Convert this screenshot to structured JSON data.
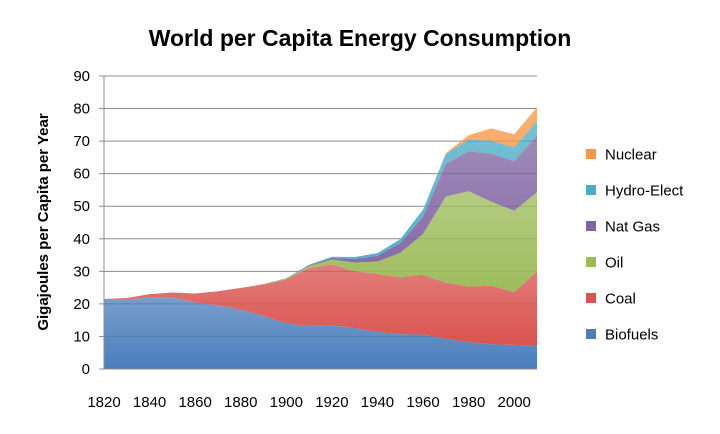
{
  "chart_data": {
    "type": "area",
    "stacked": true,
    "title": "World per Capita Energy Consumption",
    "xlabel": "",
    "ylabel": "Gigajoules per Capita per Year",
    "xlim": [
      1820,
      2010
    ],
    "ylim": [
      0,
      90
    ],
    "yticks": [
      0,
      10,
      20,
      30,
      40,
      50,
      60,
      70,
      80,
      90
    ],
    "xticks": [
      1820,
      1840,
      1860,
      1880,
      1900,
      1920,
      1940,
      1960,
      1980,
      2000
    ],
    "grid": "horizontal",
    "legend": "right",
    "x": [
      1820,
      1830,
      1840,
      1850,
      1860,
      1870,
      1880,
      1890,
      1900,
      1910,
      1920,
      1930,
      1940,
      1950,
      1960,
      1970,
      1980,
      1990,
      2000,
      2010
    ],
    "series": [
      {
        "name": "Biofuels",
        "color": "#4a7ebb",
        "values": [
          21.2,
          21.3,
          22.0,
          22.0,
          20.4,
          19.6,
          18.2,
          16.3,
          14.0,
          13.2,
          13.4,
          12.6,
          11.4,
          10.7,
          10.6,
          9.3,
          8.2,
          7.6,
          7.4,
          7.2
        ]
      },
      {
        "name": "Coal",
        "color": "#d9534f",
        "values": [
          0.3,
          0.5,
          1.0,
          1.5,
          2.8,
          4.3,
          6.7,
          9.7,
          13.5,
          17.8,
          18.8,
          17.4,
          17.8,
          17.5,
          18.4,
          17.2,
          17.1,
          18.0,
          16.2,
          22.8
        ]
      },
      {
        "name": "Oil",
        "color": "#9bbb59",
        "values": [
          0,
          0,
          0,
          0,
          0,
          0,
          0,
          0.1,
          0.2,
          0.6,
          1.4,
          2.7,
          3.8,
          7.5,
          12.5,
          26.5,
          29.3,
          25.8,
          25.0,
          24.3
        ]
      },
      {
        "name": "Nat Gas",
        "color": "#8064a2",
        "values": [
          0,
          0,
          0,
          0,
          0,
          0,
          0,
          0,
          0.1,
          0.2,
          0.5,
          1.1,
          1.8,
          3.0,
          5.3,
          10.0,
          12.3,
          14.7,
          15.3,
          17.4
        ]
      },
      {
        "name": "Hydro-Elect",
        "color": "#4bacc6",
        "values": [
          0,
          0,
          0,
          0,
          0,
          0,
          0,
          0,
          0.1,
          0.2,
          0.4,
          0.6,
          0.8,
          1.2,
          2.2,
          3.0,
          3.6,
          4.0,
          4.2,
          4.4
        ]
      },
      {
        "name": "Nuclear",
        "color": "#f79646",
        "values": [
          0,
          0,
          0,
          0,
          0,
          0,
          0,
          0,
          0,
          0,
          0,
          0,
          0,
          0,
          0,
          0.3,
          1.3,
          3.8,
          4.0,
          4.3
        ]
      }
    ]
  }
}
